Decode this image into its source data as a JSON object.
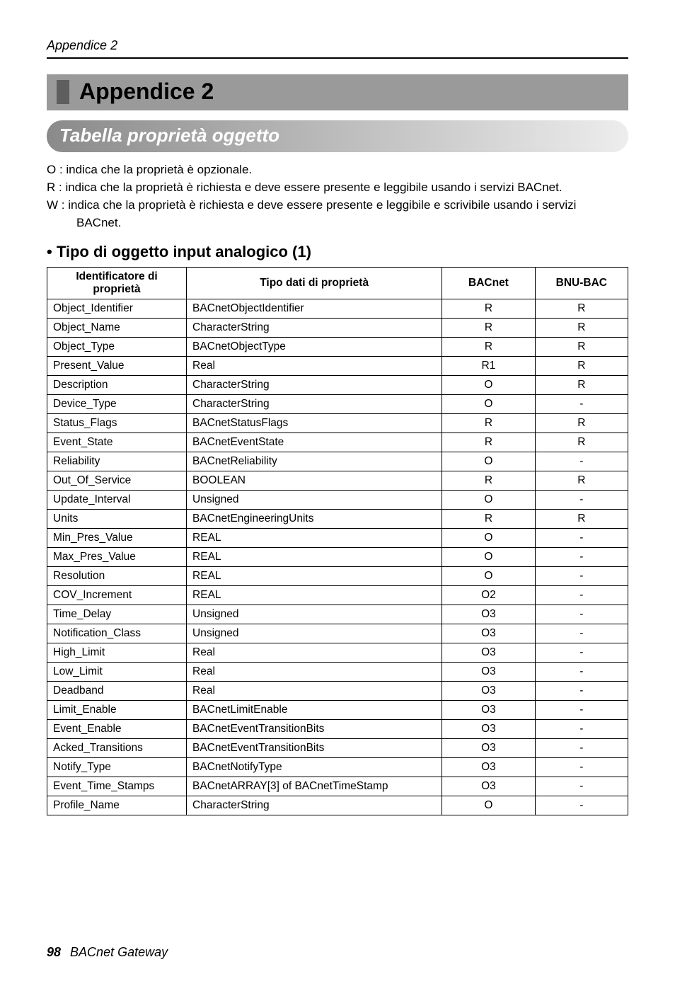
{
  "page": {
    "running_head": "Appendice 2",
    "footer_page": "98",
    "footer_doc": "BACnet Gateway"
  },
  "chapter": {
    "title": "Appendice 2"
  },
  "section": {
    "title": "Tabella proprietà oggetto"
  },
  "intro": {
    "o": "O : indica che la proprietà è opzionale.",
    "r": "R : indica che la proprietà è richiesta e deve essere presente e leggibile usando i servizi BACnet.",
    "w": "W : indica che la proprietà è richiesta e deve essere presente e leggibile e scrivibile usando i servizi",
    "w2": "BACnet."
  },
  "subhead": "• Tipo di oggetto input analogico (1)",
  "table": {
    "columns": [
      "Identificatore di proprietà",
      "Tipo dati di proprietà",
      "BACnet",
      "BNU-BAC"
    ],
    "rows": [
      [
        "Object_Identifier",
        "BACnetObjectIdentifier",
        "R",
        "R"
      ],
      [
        "Object_Name",
        "CharacterString",
        "R",
        "R"
      ],
      [
        "Object_Type",
        "BACnetObjectType",
        "R",
        "R"
      ],
      [
        "Present_Value",
        "Real",
        "R1",
        "R"
      ],
      [
        "Description",
        "CharacterString",
        "O",
        "R"
      ],
      [
        "Device_Type",
        "CharacterString",
        "O",
        "-"
      ],
      [
        "Status_Flags",
        "BACnetStatusFlags",
        "R",
        "R"
      ],
      [
        "Event_State",
        "BACnetEventState",
        "R",
        "R"
      ],
      [
        "Reliability",
        "BACnetReliability",
        "O",
        "-"
      ],
      [
        "Out_Of_Service",
        "BOOLEAN",
        "R",
        "R"
      ],
      [
        "Update_Interval",
        "Unsigned",
        "O",
        "-"
      ],
      [
        "Units",
        "BACnetEngineeringUnits",
        "R",
        "R"
      ],
      [
        "Min_Pres_Value",
        "REAL",
        "O",
        "-"
      ],
      [
        "Max_Pres_Value",
        "REAL",
        "O",
        "-"
      ],
      [
        "Resolution",
        "REAL",
        "O",
        "-"
      ],
      [
        "COV_Increment",
        "REAL",
        "O2",
        "-"
      ],
      [
        "Time_Delay",
        "Unsigned",
        "O3",
        "-"
      ],
      [
        "Notification_Class",
        "Unsigned",
        "O3",
        "-"
      ],
      [
        "High_Limit",
        "Real",
        "O3",
        "-"
      ],
      [
        "Low_Limit",
        "Real",
        "O3",
        "-"
      ],
      [
        "Deadband",
        "Real",
        "O3",
        "-"
      ],
      [
        "Limit_Enable",
        "BACnetLimitEnable",
        "O3",
        "-"
      ],
      [
        "Event_Enable",
        "BACnetEventTransitionBits",
        "O3",
        "-"
      ],
      [
        "Acked_Transitions",
        "BACnetEventTransitionBits",
        "O3",
        "-"
      ],
      [
        "Notify_Type",
        "BACnetNotifyType",
        "O3",
        "-"
      ],
      [
        "Event_Time_Stamps",
        "BACnetARRAY[3] of BACnetTimeStamp",
        "O3",
        "-"
      ],
      [
        "Profile_Name",
        "CharacterString",
        "O",
        "-"
      ]
    ],
    "header_bg": "#ffffff",
    "border_color": "#000000",
    "font_size": 15.5
  }
}
